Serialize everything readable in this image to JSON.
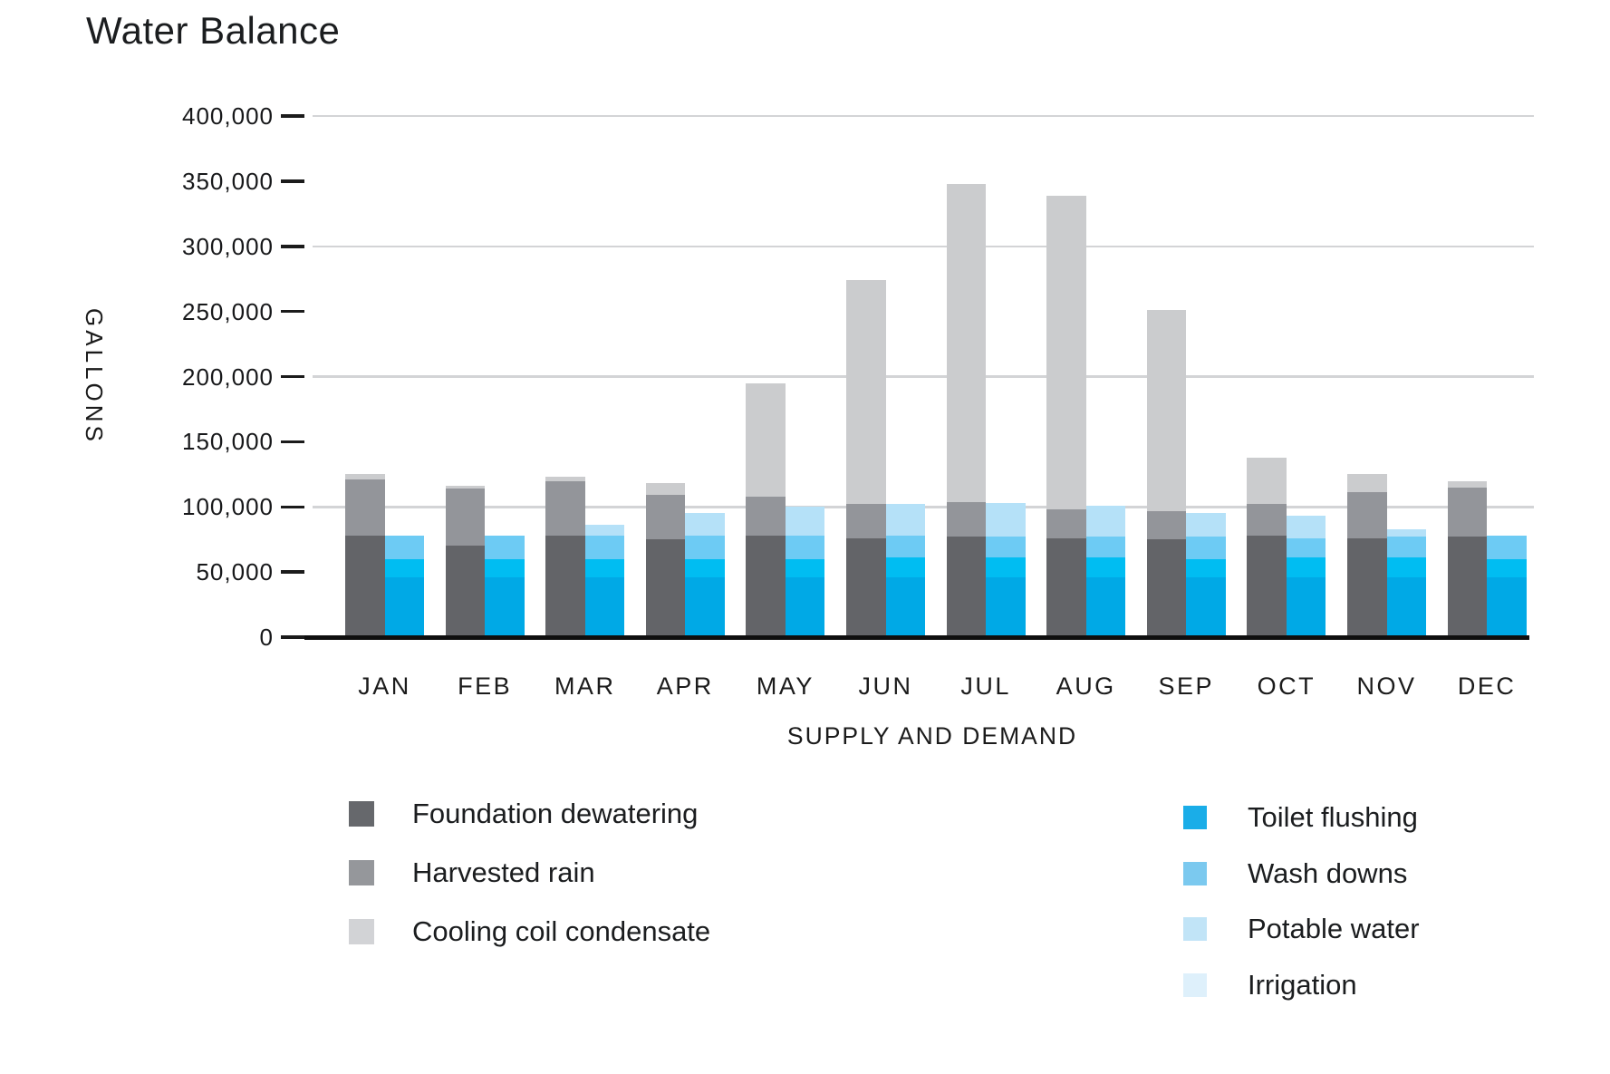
{
  "title": "Water Balance",
  "y_axis": {
    "label": "GALLONS",
    "tick_labels": [
      "400,000",
      "350,000",
      "300,000",
      "250,000",
      "200,000",
      "150,000",
      "100,000",
      "50,000",
      "0"
    ],
    "tick_values": [
      400000,
      350000,
      300000,
      250000,
      200000,
      150000,
      100000,
      50000,
      0
    ]
  },
  "x_axis": {
    "label": "SUPPLY AND DEMAND",
    "categories": [
      "JAN",
      "FEB",
      "MAR",
      "APR",
      "MAY",
      "JUN",
      "JUL",
      "AUG",
      "SEP",
      "OCT",
      "NOV",
      "DEC"
    ]
  },
  "colors": {
    "gridline": "#d3d4d6",
    "axis_line": "#0f0f0f",
    "text": "#1b1d1f"
  },
  "legend": {
    "supply_entries": [
      "Foundation dewatering",
      "Harvested rain",
      "Cooling coil condensate"
    ],
    "demand_entries": [
      "Toilet flushing",
      "Wash downs",
      "Potable water",
      "Irrigation"
    ]
  },
  "chart_data": {
    "type": "bar",
    "subtype": "grouped-stacked",
    "title": "Water Balance",
    "xlabel": "SUPPLY AND DEMAND",
    "ylabel": "GALLONS",
    "ylim": [
      0,
      400000
    ],
    "gridline_values": [
      100000,
      200000,
      300000,
      400000
    ],
    "tick_step": 50000,
    "legend_position": "bottom-two-columns",
    "categories": [
      "JAN",
      "FEB",
      "MAR",
      "APR",
      "MAY",
      "JUN",
      "JUL",
      "AUG",
      "SEP",
      "OCT",
      "NOV",
      "DEC"
    ],
    "series": [
      {
        "name": "Foundation dewatering",
        "group": "supply",
        "stack_order": 1,
        "bar_color": "#636468",
        "swatch_color": "#66686c",
        "values": [
          78000,
          70000,
          78000,
          75000,
          78000,
          76000,
          77000,
          76000,
          75000,
          78000,
          76000,
          77000
        ]
      },
      {
        "name": "Harvested rain",
        "group": "supply",
        "stack_order": 2,
        "bar_color": "#93959a",
        "swatch_color": "#95979b",
        "values": [
          43000,
          44000,
          42000,
          34000,
          30000,
          26000,
          27000,
          22000,
          22000,
          24000,
          35000,
          38000
        ]
      },
      {
        "name": "Cooling coil condensate",
        "group": "supply",
        "stack_order": 3,
        "bar_color": "#cbccce",
        "swatch_color": "#d2d3d6",
        "values": [
          4000,
          2000,
          3000,
          9000,
          87000,
          172000,
          244000,
          241000,
          154000,
          36000,
          14000,
          5000
        ]
      },
      {
        "name": "Toilet flushing",
        "group": "demand",
        "stack_order": 1,
        "bar_color": "#00a9e6",
        "swatch_color": "#1aade8",
        "values": [
          46000,
          46000,
          46000,
          46000,
          46000,
          46000,
          46000,
          46000,
          46000,
          46000,
          46000,
          46000
        ]
      },
      {
        "name": "Wash downs",
        "group": "demand",
        "stack_order": 2,
        "bar_color": "#00bdf2",
        "swatch_color": "#7bc9ef",
        "values": [
          14000,
          14000,
          14000,
          14000,
          14000,
          15000,
          15000,
          15000,
          14000,
          15000,
          15000,
          14000
        ]
      },
      {
        "name": "Potable water",
        "group": "demand",
        "stack_order": 3,
        "bar_color": "#6dcbf4",
        "swatch_color": "#c1e4f7",
        "values": [
          18000,
          18000,
          18000,
          18000,
          18000,
          17000,
          16000,
          16000,
          17000,
          15000,
          16000,
          18000
        ]
      },
      {
        "name": "Irrigation",
        "group": "demand",
        "stack_order": 4,
        "bar_color": "#b5e1f8",
        "swatch_color": "#def0fb",
        "values": [
          0,
          0,
          8000,
          17000,
          22000,
          24000,
          26000,
          24000,
          18000,
          17000,
          6000,
          0
        ]
      }
    ],
    "supply_totals": [
      125000,
      116000,
      123000,
      118000,
      195000,
      274000,
      348000,
      339000,
      251000,
      138000,
      125000,
      120000
    ],
    "demand_totals": [
      78000,
      78000,
      86000,
      95000,
      100000,
      102000,
      103000,
      101000,
      95000,
      93000,
      83000,
      78000
    ]
  }
}
